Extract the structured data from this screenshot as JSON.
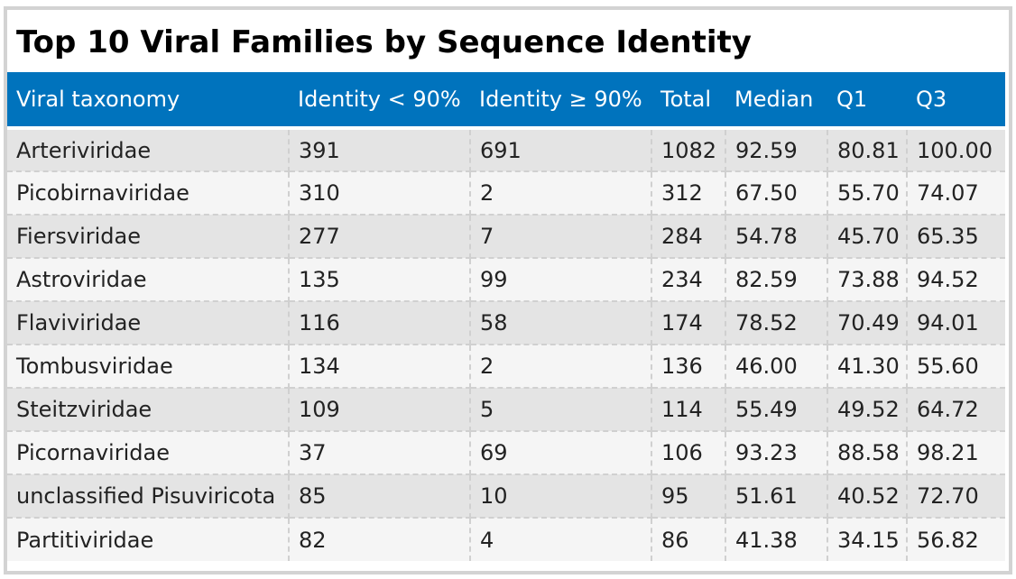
{
  "title": "Top 10 Viral Families by Sequence Identity",
  "colors": {
    "header_bg": "#0073bd",
    "header_text": "#ffffff",
    "row_odd": "#e4e4e4",
    "row_even": "#f5f5f5",
    "frame_border": "#d3d3d3"
  },
  "table": {
    "columns": [
      "Viral taxonomy",
      "Identity < 90%",
      "Identity ≥ 90%",
      "Total",
      "Median",
      "Q1",
      "Q3"
    ],
    "rows": [
      [
        "Arteriviridae",
        "391",
        "691",
        "1082",
        "92.59",
        "80.81",
        "100.00"
      ],
      [
        "Picobirnaviridae",
        "310",
        "2",
        "312",
        "67.50",
        "55.70",
        "74.07"
      ],
      [
        "Fiersviridae",
        "277",
        "7",
        "284",
        "54.78",
        "45.70",
        "65.35"
      ],
      [
        "Astroviridae",
        "135",
        "99",
        "234",
        "82.59",
        "73.88",
        "94.52"
      ],
      [
        "Flaviviridae",
        "116",
        "58",
        "174",
        "78.52",
        "70.49",
        "94.01"
      ],
      [
        "Tombusviridae",
        "134",
        "2",
        "136",
        "46.00",
        "41.30",
        "55.60"
      ],
      [
        "Steitzviridae",
        "109",
        "5",
        "114",
        "55.49",
        "49.52",
        "64.72"
      ],
      [
        "Picornaviridae",
        "37",
        "69",
        "106",
        "93.23",
        "88.58",
        "98.21"
      ],
      [
        "unclassified Pisuviricota",
        "85",
        "10",
        "95",
        "51.61",
        "40.52",
        "72.70"
      ],
      [
        "Partitiviridae",
        "82",
        "4",
        "86",
        "41.38",
        "34.15",
        "56.82"
      ]
    ]
  }
}
